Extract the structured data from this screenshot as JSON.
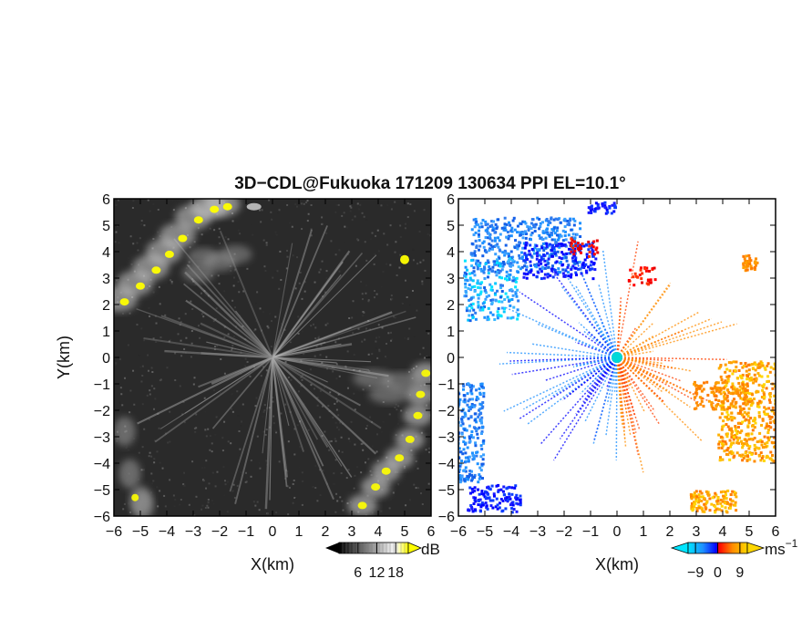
{
  "chart_data": [
    {
      "type": "heatmap",
      "panel": "left",
      "title": "3D−CDL@Fukuoka 171209 130634 PPI EL=10.1°",
      "xlabel": "X(km)",
      "ylabel": "Y(km)",
      "xlim": [
        -6,
        6
      ],
      "ylim": [
        -6,
        6
      ],
      "x_ticks": [
        "−6",
        "−5",
        "−4",
        "−3",
        "−2",
        "−1",
        "0",
        "1",
        "2",
        "3",
        "4",
        "5",
        "6"
      ],
      "y_ticks": [
        "6",
        "5",
        "4",
        "3",
        "2",
        "1",
        "0",
        "−1",
        "−2",
        "−3",
        "−4",
        "−5",
        "−6"
      ],
      "colorbar": {
        "unit": "dB",
        "ticks": [
          "6",
          "12",
          "18"
        ],
        "tick_values": [
          6,
          12,
          18
        ],
        "range": [
          0,
          22
        ],
        "colors": [
          "#000000",
          "#ffffff",
          "#ffff00"
        ]
      },
      "regions": [
        {
          "kind": "arc-band",
          "desc": "bright returns NW",
          "center": [
            -3.6,
            3.3
          ],
          "intensity": "high"
        },
        {
          "kind": "arc-band",
          "desc": "bright returns SE",
          "center": [
            4.5,
            -3.5
          ],
          "intensity": "high"
        },
        {
          "kind": "spot",
          "center": [
            5.1,
            3.6
          ],
          "intensity": "high"
        },
        {
          "kind": "spot",
          "center": [
            -0.7,
            5.6
          ],
          "intensity": "medium"
        }
      ]
    },
    {
      "type": "heatmap",
      "panel": "right",
      "xlabel": "X(km)",
      "xlim": [
        -6,
        6
      ],
      "ylim": [
        -6,
        6
      ],
      "x_ticks": [
        "−6",
        "−5",
        "−4",
        "−3",
        "−2",
        "−1",
        "0",
        "1",
        "2",
        "3",
        "4",
        "5",
        "6"
      ],
      "y_ticks": [
        "6",
        "5",
        "4",
        "3",
        "2",
        "1",
        "0",
        "−1",
        "−2",
        "−3",
        "−4",
        "−5",
        "−6"
      ],
      "colorbar": {
        "unit": "ms",
        "unit_exp": "−1",
        "ticks": [
          "−9",
          "0",
          "9"
        ],
        "tick_values": [
          -9,
          0,
          9
        ],
        "range": [
          -12,
          12
        ],
        "colors": [
          "#00e5ff",
          "#1e90ff",
          "#0000ff",
          "#ff0000",
          "#ff8c00",
          "#ffd700"
        ]
      },
      "regions": [
        {
          "kind": "band",
          "desc": "negative Doppler velocity NW",
          "center": [
            -3.5,
            3.8
          ],
          "value": -8
        },
        {
          "kind": "band",
          "desc": "negative Doppler velocity W",
          "center": [
            -5.5,
            -3
          ],
          "value": -7
        },
        {
          "kind": "band",
          "desc": "positive Doppler velocity E",
          "center": [
            5,
            -2
          ],
          "value": 10
        },
        {
          "kind": "spot",
          "center": [
            5,
            3.6
          ],
          "value": 7
        },
        {
          "kind": "spot",
          "center": [
            3.5,
            -5.5
          ],
          "value": 6
        }
      ]
    }
  ]
}
